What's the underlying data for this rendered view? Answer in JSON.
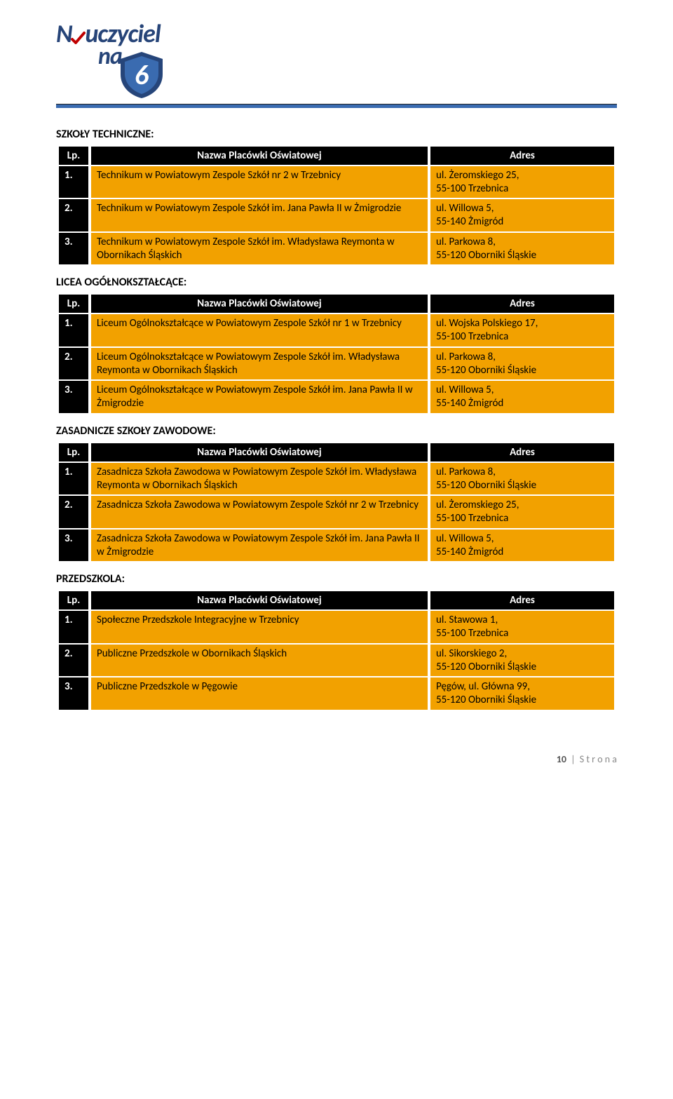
{
  "logo": {
    "line1_part1": "N",
    "line1_part2": "uczyciel",
    "line2": "na",
    "shield_number": "6",
    "text_color": "#264478",
    "shield_outer": "#26457a",
    "shield_inner": "#3a6bb0"
  },
  "colors": {
    "header_bg": "#000000",
    "header_fg": "#ffffff",
    "row_bg": "#f2a100",
    "rule_color": "#3a6bb0"
  },
  "sections": [
    {
      "title": "SZKOŁY TECHNICZNE:",
      "headers": [
        "Lp.",
        "Nazwa Placówki Oświatowej",
        "Adres"
      ],
      "rows": [
        {
          "lp": "1.",
          "name": "Technikum w Powiatowym Zespole Szkół nr 2 w Trzebnicy",
          "addr": "ul. Żeromskiego 25,\n55-100 Trzebnica"
        },
        {
          "lp": "2.",
          "name": "Technikum w Powiatowym Zespole Szkół im. Jana Pawła II w Żmigrodzie",
          "addr": "ul. Willowa 5,\n55-140 Żmigród"
        },
        {
          "lp": "3.",
          "name": "Technikum w Powiatowym Zespole Szkół im. Władysława Reymonta w Obornikach Śląskich",
          "addr": "ul. Parkowa 8,\n55-120 Oborniki Śląskie"
        }
      ]
    },
    {
      "title": "LICEA OGÓŁNOKSZTAŁCĄCE:",
      "headers": [
        "Lp.",
        "Nazwa Placówki Oświatowej",
        "Adres"
      ],
      "rows": [
        {
          "lp": "1.",
          "name": "Liceum Ogólnokształcące w Powiatowym Zespole Szkół nr 1 w Trzebnicy",
          "addr": "ul. Wojska Polskiego 17,\n55-100 Trzebnica"
        },
        {
          "lp": "2.",
          "name": "Liceum Ogólnokształcące w Powiatowym Zespole Szkół im. Władysława Reymonta w Obornikach Śląskich",
          "addr": "ul. Parkowa 8,\n55-120 Oborniki Śląskie"
        },
        {
          "lp": "3.",
          "name": "Liceum Ogólnokształcące w Powiatowym Zespole Szkół im. Jana Pawła II w Żmigrodzie",
          "addr": "ul. Willowa 5,\n55-140 Żmigród"
        }
      ]
    },
    {
      "title": "ZASADNICZE SZKOŁY ZAWODOWE:",
      "headers": [
        "Lp.",
        "Nazwa Placówki Oświatowej",
        "Adres"
      ],
      "rows": [
        {
          "lp": "1.",
          "name": "Zasadnicza Szkoła Zawodowa w Powiatowym Zespole Szkół im. Władysława Reymonta w Obornikach Śląskich",
          "addr": "ul. Parkowa 8,\n55-120 Oborniki Śląskie"
        },
        {
          "lp": "2.",
          "name": "Zasadnicza Szkoła Zawodowa w Powiatowym Zespole Szkół nr 2 w Trzebnicy",
          "addr": "ul. Żeromskiego 25,\n55-100 Trzebnica"
        },
        {
          "lp": "3.",
          "name": "Zasadnicza Szkoła Zawodowa w Powiatowym Zespole Szkół im. Jana Pawła II w Żmigrodzie",
          "addr": "ul. Willowa 5,\n55-140 Żmigród"
        }
      ]
    },
    {
      "title": "PRZEDSZKOLA:",
      "headers": [
        "Lp.",
        "Nazwa Placówki Oświatowej",
        "Adres"
      ],
      "rows": [
        {
          "lp": "1.",
          "name": "Społeczne Przedszkole Integracyjne w Trzebnicy",
          "addr": "ul. Stawowa 1,\n55-100 Trzebnica"
        },
        {
          "lp": "2.",
          "name": "Publiczne Przedszkole w Obornikach Śląskich",
          "addr": "ul. Sikorskiego 2,\n55-120 Oborniki Śląskie"
        },
        {
          "lp": "3.",
          "name": "Publiczne Przedszkole w Pęgowie",
          "addr": "Pęgów, ul. Główna 99,\n55-120 Oborniki Śląskie"
        }
      ]
    }
  ],
  "footer": {
    "page": "10",
    "sep": "|",
    "label": "S t r o n a"
  }
}
